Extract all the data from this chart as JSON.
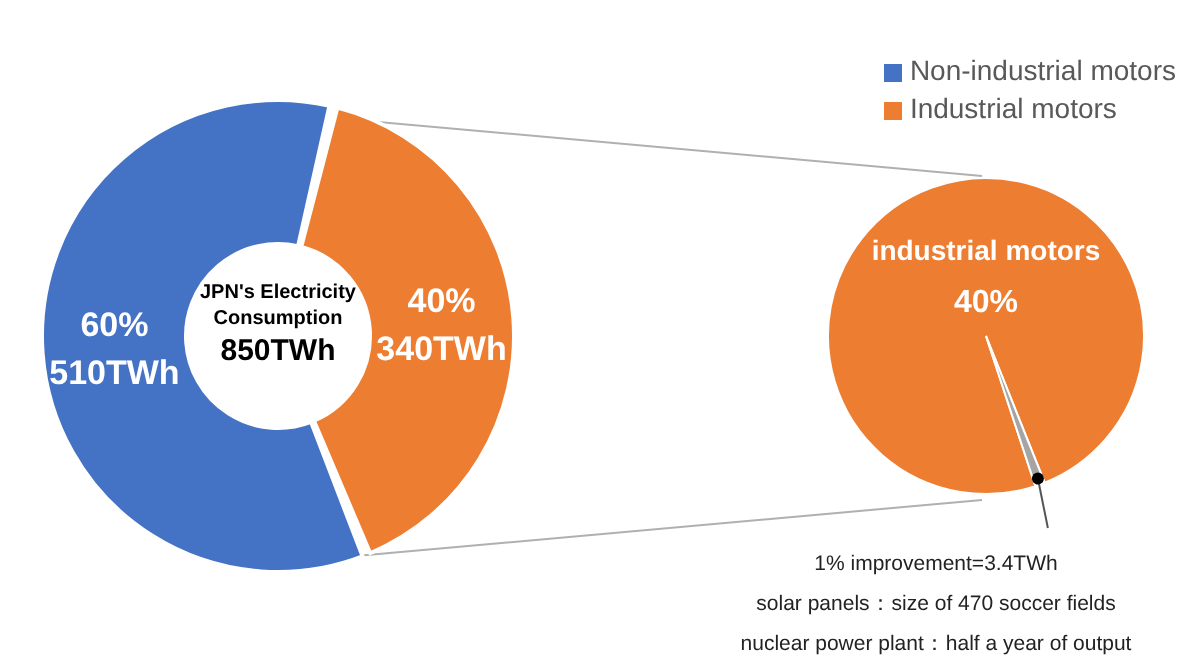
{
  "chart_data": [
    {
      "type": "donut",
      "categories": [
        "Non-industrial motors",
        "Industrial motors"
      ],
      "values": [
        60,
        40
      ],
      "colors": [
        "#4472c4",
        "#ed7d31"
      ],
      "value_labels": [
        "60%\n510TWh",
        "40%\n340TWh"
      ],
      "annotations": [
        "JPN's Electricity Consumption",
        "850TWh"
      ],
      "legend": "top right"
    },
    {
      "type": "pie",
      "categories": [
        "industrial motors",
        null
      ],
      "values": [
        99,
        1
      ],
      "colors": [
        "#ed7d31",
        "#a5a5a5"
      ],
      "annotations": [
        "40%",
        "1% improvement=3.4TWh",
        "solar panels：size of 470 soccer fields",
        "nuclear power plant：half a year of output"
      ]
    }
  ]
}
